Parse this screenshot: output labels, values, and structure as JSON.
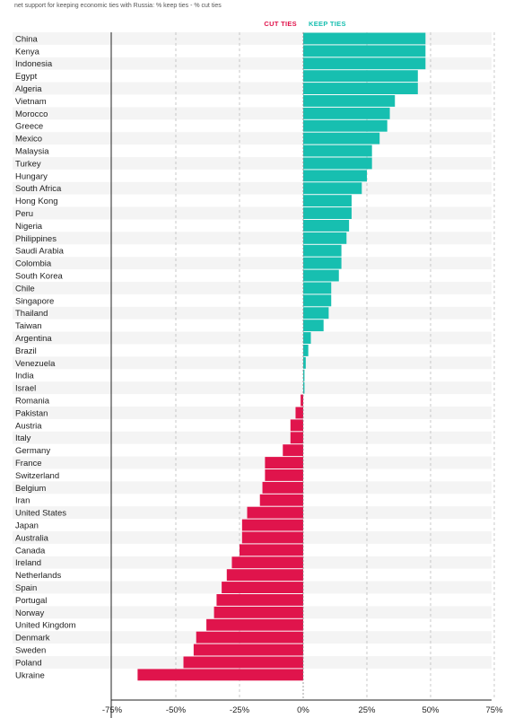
{
  "subtitle": "net support for keeping economic ties with Russia: % keep ties - % cut ties",
  "legend": {
    "cut_label": "CUT TIES",
    "keep_label": "KEEP TIES"
  },
  "colors": {
    "keep": "#17bfb0",
    "cut": "#e0144c",
    "row_band": "#f4f4f4",
    "grid": "#bbbbbb",
    "axis": "#222222"
  },
  "chart_data": {
    "type": "bar",
    "orientation": "horizontal",
    "xlim": [
      -75,
      75
    ],
    "xticks": [
      -75,
      -50,
      -25,
      0,
      25,
      50,
      75
    ],
    "xtick_labels": [
      "-75%",
      "-50%",
      "-25%",
      "0%",
      "25%",
      "50%",
      "75%"
    ],
    "grid": true,
    "legend_position": "top-center",
    "categories": [
      "China",
      "Kenya",
      "Indonesia",
      "Egypt",
      "Algeria",
      "Vietnam",
      "Morocco",
      "Greece",
      "Mexico",
      "Malaysia",
      "Turkey",
      "Hungary",
      "South Africa",
      "Hong Kong",
      "Peru",
      "Nigeria",
      "Philippines",
      "Saudi Arabia",
      "Colombia",
      "South Korea",
      "Chile",
      "Singapore",
      "Thailand",
      "Taiwan",
      "Argentina",
      "Brazil",
      "Venezuela",
      "India",
      "Israel",
      "Romania",
      "Pakistan",
      "Austria",
      "Italy",
      "Germany",
      "France",
      "Switzerland",
      "Belgium",
      "Iran",
      "United States",
      "Japan",
      "Australia",
      "Canada",
      "Ireland",
      "Netherlands",
      "Spain",
      "Portugal",
      "Norway",
      "United Kingdom",
      "Denmark",
      "Sweden",
      "Poland",
      "Ukraine"
    ],
    "values": [
      48,
      48,
      48,
      45,
      45,
      36,
      34,
      33,
      30,
      27,
      27,
      25,
      23,
      19,
      19,
      18,
      17,
      15,
      15,
      14,
      11,
      11,
      10,
      8,
      3,
      2,
      1,
      0.5,
      0.5,
      -1,
      -3,
      -5,
      -5,
      -8,
      -15,
      -15,
      -16,
      -17,
      -22,
      -24,
      -24,
      -25,
      -28,
      -30,
      -32,
      -34,
      -35,
      -38,
      -42,
      -43,
      -47,
      -65
    ]
  }
}
